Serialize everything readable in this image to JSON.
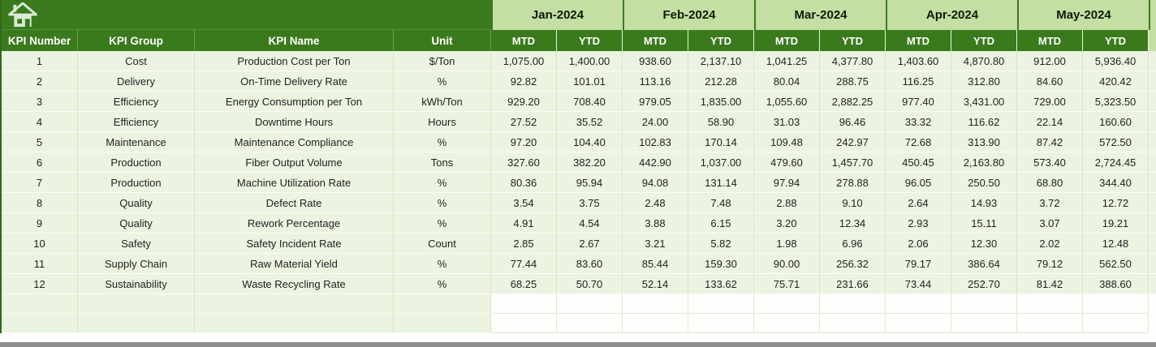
{
  "table": {
    "left_headers": [
      "KPI Number",
      "KPI Group",
      "KPI Name",
      "Unit"
    ],
    "months": [
      "Jan-2024",
      "Feb-2024",
      "Mar-2024",
      "Apr-2024",
      "May-2024"
    ],
    "sub_headers": [
      "MTD",
      "YTD"
    ],
    "rows": [
      {
        "num": "1",
        "group": "Cost",
        "name": "Production Cost per Ton",
        "unit": "$/Ton",
        "values": [
          "1,075.00",
          "1,400.00",
          "938.60",
          "2,137.10",
          "1,041.25",
          "4,377.80",
          "1,403.60",
          "4,870.80",
          "912.00",
          "5,936.40"
        ]
      },
      {
        "num": "2",
        "group": "Delivery",
        "name": "On-Time Delivery Rate",
        "unit": "%",
        "values": [
          "92.82",
          "101.01",
          "113.16",
          "212.28",
          "80.04",
          "288.75",
          "116.25",
          "312.80",
          "84.60",
          "420.42"
        ]
      },
      {
        "num": "3",
        "group": "Efficiency",
        "name": "Energy Consumption per Ton",
        "unit": "kWh/Ton",
        "values": [
          "929.20",
          "708.40",
          "979.05",
          "1,835.00",
          "1,055.60",
          "2,882.25",
          "977.40",
          "3,431.00",
          "729.00",
          "5,323.50"
        ]
      },
      {
        "num": "4",
        "group": "Efficiency",
        "name": "Downtime Hours",
        "unit": "Hours",
        "values": [
          "27.52",
          "35.52",
          "24.00",
          "58.90",
          "31.03",
          "96.46",
          "33.32",
          "116.62",
          "22.14",
          "160.60"
        ]
      },
      {
        "num": "5",
        "group": "Maintenance",
        "name": "Maintenance Compliance",
        "unit": "%",
        "values": [
          "97.20",
          "104.40",
          "102.83",
          "170.14",
          "109.48",
          "242.97",
          "72.68",
          "313.90",
          "87.42",
          "572.50"
        ]
      },
      {
        "num": "6",
        "group": "Production",
        "name": "Fiber Output Volume",
        "unit": "Tons",
        "values": [
          "327.60",
          "382.20",
          "442.90",
          "1,037.00",
          "479.60",
          "1,457.70",
          "450.45",
          "2,163.80",
          "573.40",
          "2,724.45"
        ]
      },
      {
        "num": "7",
        "group": "Production",
        "name": "Machine Utilization Rate",
        "unit": "%",
        "values": [
          "80.36",
          "95.94",
          "94.08",
          "131.14",
          "97.94",
          "278.88",
          "96.05",
          "250.50",
          "68.80",
          "344.40"
        ]
      },
      {
        "num": "8",
        "group": "Quality",
        "name": "Defect Rate",
        "unit": "%",
        "values": [
          "3.54",
          "3.75",
          "2.48",
          "7.48",
          "2.88",
          "9.10",
          "2.64",
          "14.93",
          "3.72",
          "12.72"
        ]
      },
      {
        "num": "9",
        "group": "Quality",
        "name": "Rework Percentage",
        "unit": "%",
        "values": [
          "4.91",
          "4.54",
          "3.88",
          "6.15",
          "3.20",
          "12.34",
          "2.93",
          "15.11",
          "3.07",
          "19.21"
        ]
      },
      {
        "num": "10",
        "group": "Safety",
        "name": "Safety Incident Rate",
        "unit": "Count",
        "values": [
          "2.85",
          "2.67",
          "3.21",
          "5.82",
          "1.98",
          "6.96",
          "2.06",
          "12.30",
          "2.02",
          "12.48"
        ]
      },
      {
        "num": "11",
        "group": "Supply Chain",
        "name": "Raw Material Yield",
        "unit": "%",
        "values": [
          "77.44",
          "83.60",
          "85.44",
          "159.30",
          "90.00",
          "256.32",
          "79.17",
          "386.64",
          "79.12",
          "562.50"
        ]
      },
      {
        "num": "12",
        "group": "Sustainability",
        "name": "Waste Recycling Rate",
        "unit": "%",
        "values": [
          "68.25",
          "50.70",
          "52.14",
          "133.62",
          "75.71",
          "231.66",
          "73.44",
          "252.70",
          "81.42",
          "388.60"
        ]
      }
    ],
    "empty_row_count": 2
  },
  "icons": {
    "home": "home-icon"
  },
  "colors": {
    "dark_green": "#3A7A1D",
    "light_green_header": "#C3DFA4",
    "pale_green_cell": "#EBF4E1",
    "empty_cell_white": "#FEFEFC",
    "bottom_bar_gray": "#8D8D8D",
    "header_text": "#FFFFFF",
    "body_text": "#222222",
    "icon_fill": "#D8EDD2"
  }
}
